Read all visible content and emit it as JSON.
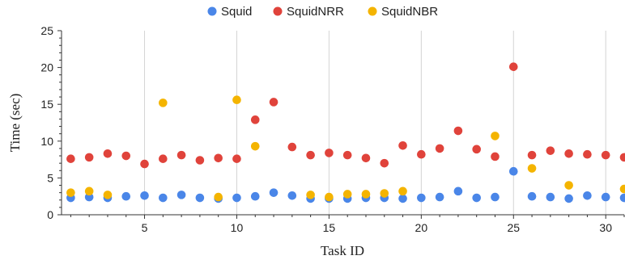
{
  "chart_data": {
    "type": "scatter",
    "xlabel": "Task ID",
    "ylabel": "Time (sec)",
    "xlim": [
      0.5,
      31
    ],
    "ylim": [
      0,
      25
    ],
    "x_ticks": [
      5,
      10,
      15,
      20,
      25,
      30
    ],
    "y_ticks": [
      0,
      5,
      10,
      15,
      20,
      25
    ],
    "grid": "vertical",
    "legend": "top-center",
    "x": [
      1,
      2,
      3,
      4,
      5,
      6,
      7,
      8,
      9,
      10,
      11,
      12,
      13,
      14,
      15,
      16,
      17,
      18,
      19,
      20,
      21,
      22,
      23,
      24,
      25,
      26,
      27,
      28,
      29,
      30,
      31
    ],
    "series": [
      {
        "name": "Squid",
        "color": "#4a86e8",
        "values": [
          2.3,
          2.4,
          2.3,
          2.5,
          2.6,
          2.3,
          2.7,
          2.3,
          2.2,
          2.3,
          2.5,
          3.0,
          2.6,
          2.2,
          2.2,
          2.2,
          2.3,
          2.3,
          2.2,
          2.3,
          2.4,
          3.2,
          2.3,
          2.4,
          5.9,
          2.5,
          2.4,
          2.2,
          2.6,
          2.4,
          2.3
        ]
      },
      {
        "name": "SquidNRR",
        "color": "#e0433b",
        "values": [
          7.6,
          7.8,
          8.3,
          8.0,
          6.9,
          7.6,
          8.1,
          7.4,
          7.7,
          7.6,
          12.9,
          15.3,
          9.2,
          8.1,
          8.4,
          8.1,
          7.7,
          7.0,
          9.4,
          8.2,
          9.0,
          11.4,
          8.9,
          7.9,
          20.1,
          8.1,
          8.7,
          8.3,
          8.2,
          8.1,
          7.8
        ]
      },
      {
        "name": "SquidNBR",
        "color": "#f4b400",
        "values": [
          3.0,
          3.2,
          2.7,
          null,
          null,
          15.2,
          null,
          null,
          2.4,
          15.6,
          9.3,
          null,
          null,
          2.7,
          2.4,
          2.8,
          2.8,
          2.9,
          3.2,
          null,
          null,
          null,
          null,
          10.7,
          null,
          6.3,
          null,
          4.0,
          null,
          null,
          3.5
        ]
      }
    ]
  }
}
